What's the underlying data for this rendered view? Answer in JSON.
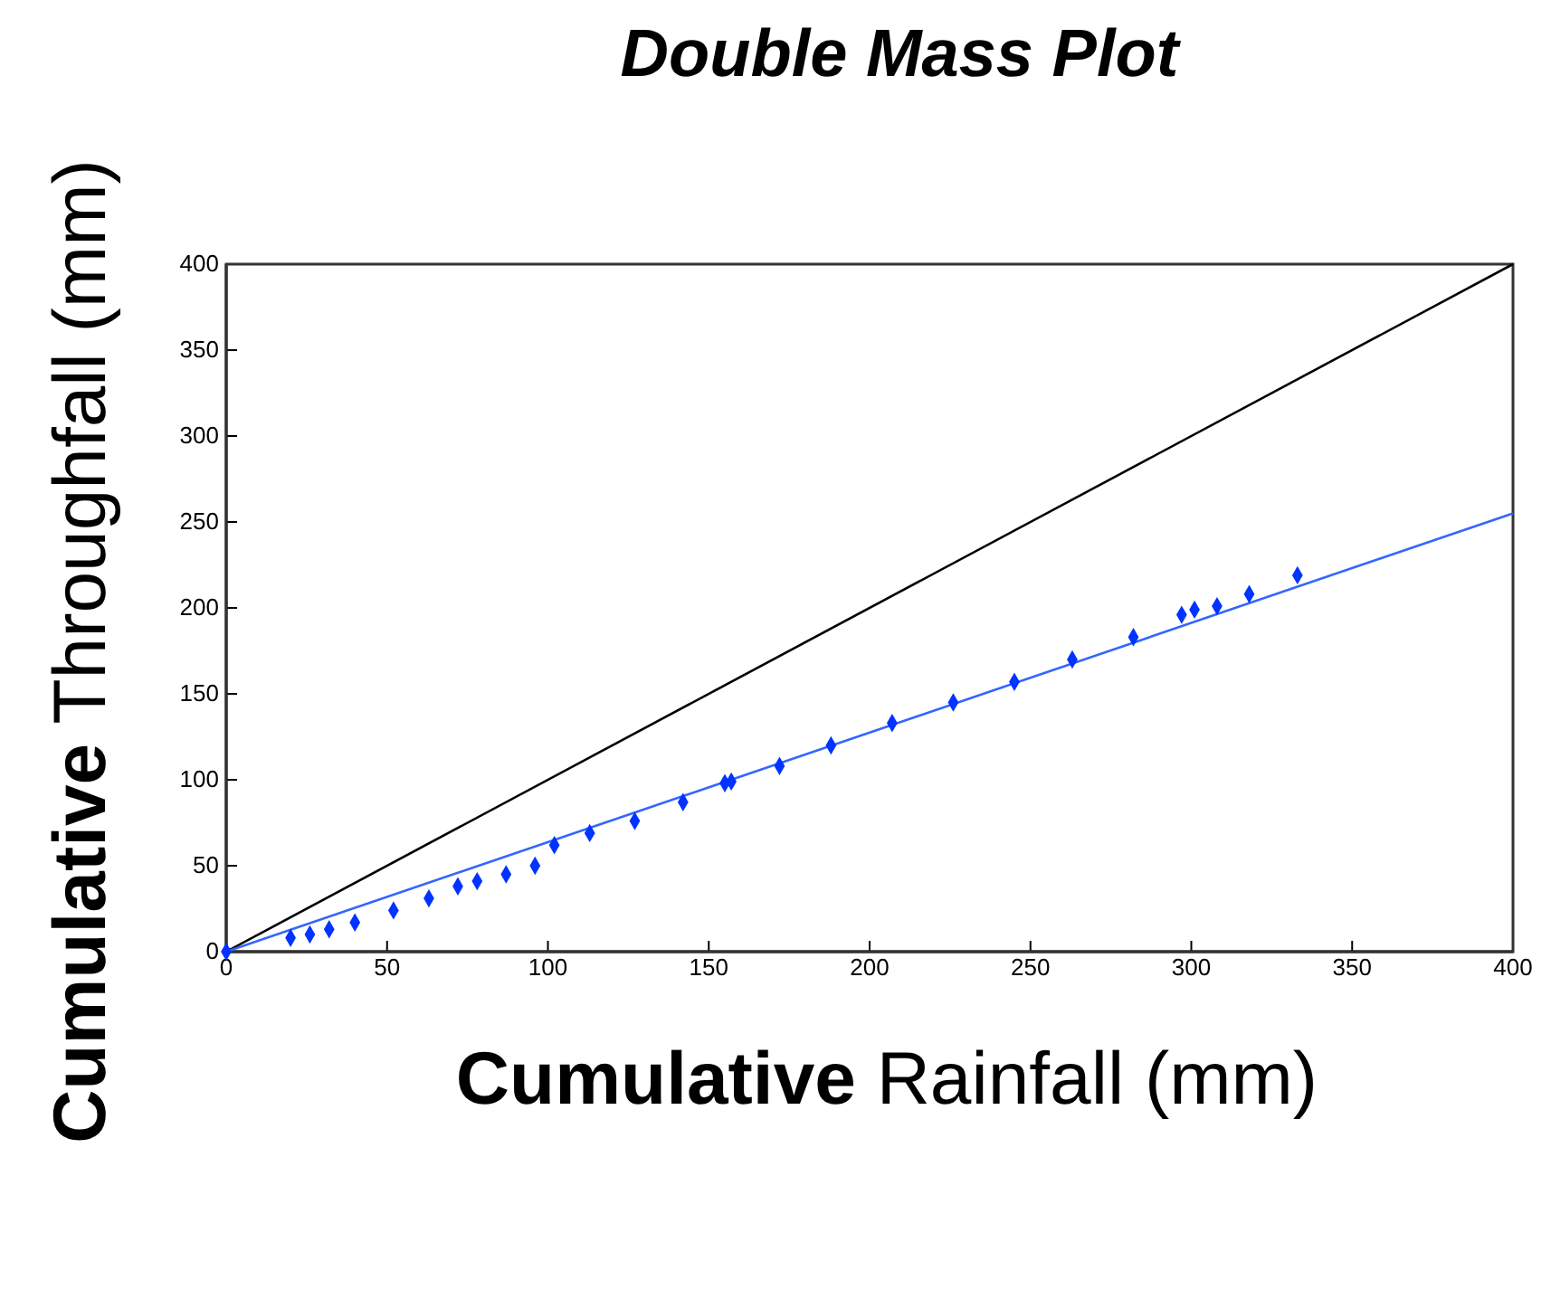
{
  "chart_data": {
    "type": "scatter",
    "title": "Double Mass Plot",
    "xlabel": "Cumulative Rainfall (mm)",
    "ylabel": "Cumulative Throughfall (mm)",
    "xlim": [
      0,
      400
    ],
    "ylim": [
      0,
      400
    ],
    "xticks": [
      0,
      50,
      100,
      150,
      200,
      250,
      300,
      350,
      400
    ],
    "yticks": [
      0,
      50,
      100,
      150,
      200,
      250,
      300,
      350,
      400
    ],
    "grid": false,
    "series": [
      {
        "type": "line",
        "color": "#000000",
        "x": [
          0,
          400
        ],
        "values": [
          0,
          400
        ],
        "marker": "none"
      },
      {
        "type": "line",
        "color": "#3366ff",
        "x": [
          0,
          400
        ],
        "values": [
          0,
          255
        ],
        "marker": "none"
      },
      {
        "color": "#0033ff",
        "marker": "diamond",
        "x": [
          0,
          20,
          26,
          32,
          40,
          52,
          63,
          72,
          78,
          87,
          96,
          102,
          113,
          127,
          142,
          155,
          157,
          172,
          188,
          207,
          226,
          245,
          263,
          282,
          297,
          301,
          308,
          318,
          333
        ],
        "values": [
          0,
          8,
          10,
          13,
          17,
          24,
          31,
          38,
          41,
          45,
          50,
          62,
          69,
          76,
          87,
          98,
          99,
          108,
          120,
          133,
          145,
          157,
          170,
          183,
          196,
          199,
          201,
          208,
          219
        ]
      }
    ]
  }
}
